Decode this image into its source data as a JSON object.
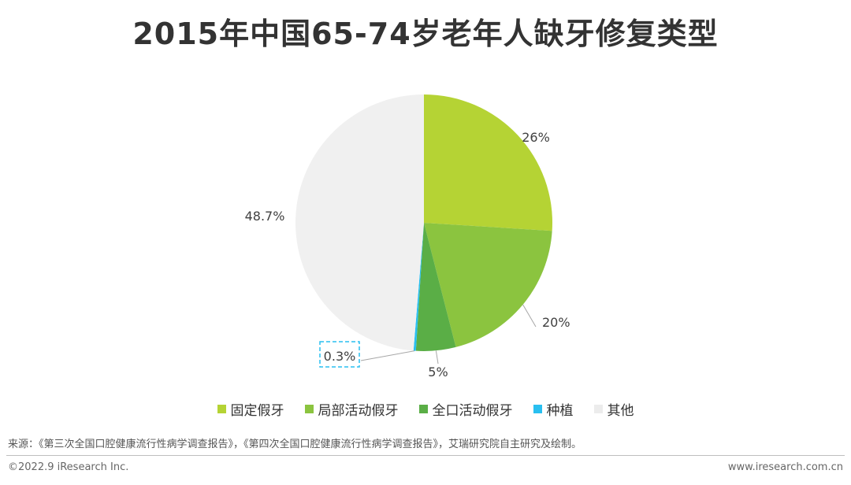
{
  "title": "2015年中国65-74岁老年人缺牙修复类型",
  "chart_data": {
    "type": "pie",
    "title": "2015年中国65-74岁老年人缺牙修复类型",
    "unit": "%",
    "legend_position": "bottom",
    "slices": [
      {
        "name": "固定假牙",
        "value": 26,
        "label": "26%",
        "color": "#b5d334"
      },
      {
        "name": "局部活动假牙",
        "value": 20,
        "label": "20%",
        "color": "#8bc43f"
      },
      {
        "name": "全口活动假牙",
        "value": 5,
        "label": "5%",
        "color": "#5aae46"
      },
      {
        "name": "种植",
        "value": 0.3,
        "label": "0.3%",
        "color": "#29bff0"
      },
      {
        "name": "其他",
        "value": 48.7,
        "label": "48.7%",
        "color": "#f0f0f0"
      }
    ]
  },
  "source": "来源：《第三次全国口腔健康流行性病学调查报告》，《第四次全国口腔健康流行性病学调查报告》，艾瑞研究院自主研究及绘制。",
  "footer": {
    "copyright": "©2022.9 iResearch Inc.",
    "website": "www.iresearch.com.cn"
  }
}
